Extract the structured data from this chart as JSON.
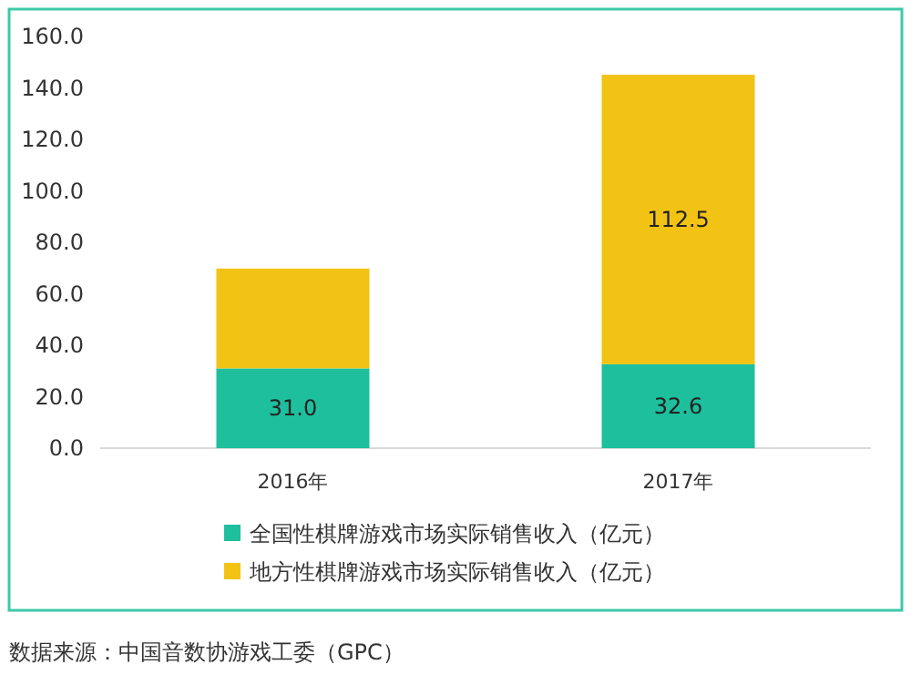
{
  "chart_data": {
    "type": "bar",
    "stacked": true,
    "categories": [
      "2016年",
      "2017年"
    ],
    "series": [
      {
        "name": "全国性棋牌游戏市场实际销售收入（亿元）",
        "color": "#1dbf9d",
        "values": [
          31.0,
          32.6
        ],
        "value_labels": [
          "31.0",
          "32.6"
        ]
      },
      {
        "name": "地方性棋牌游戏市场实际销售收入（亿元）",
        "color": "#f2c314",
        "values": [
          38.8,
          112.5
        ],
        "value_labels": [
          null,
          "112.5"
        ]
      }
    ],
    "ylim": [
      0,
      160
    ],
    "yticks": [
      {
        "value": 0,
        "label": "0.0"
      },
      {
        "value": 20,
        "label": "20.0"
      },
      {
        "value": 40,
        "label": "40.0"
      },
      {
        "value": 60,
        "label": "60.0"
      },
      {
        "value": 80,
        "label": "80.0"
      },
      {
        "value": 100,
        "label": "100.0"
      },
      {
        "value": 120,
        "label": "120.0"
      },
      {
        "value": 140,
        "label": "140.0"
      },
      {
        "value": 160,
        "label": "160.0"
      }
    ],
    "grid": false,
    "legend": "bottom",
    "annotations": [
      "数据来源：中国音数协游戏工委（GPC）"
    ]
  }
}
